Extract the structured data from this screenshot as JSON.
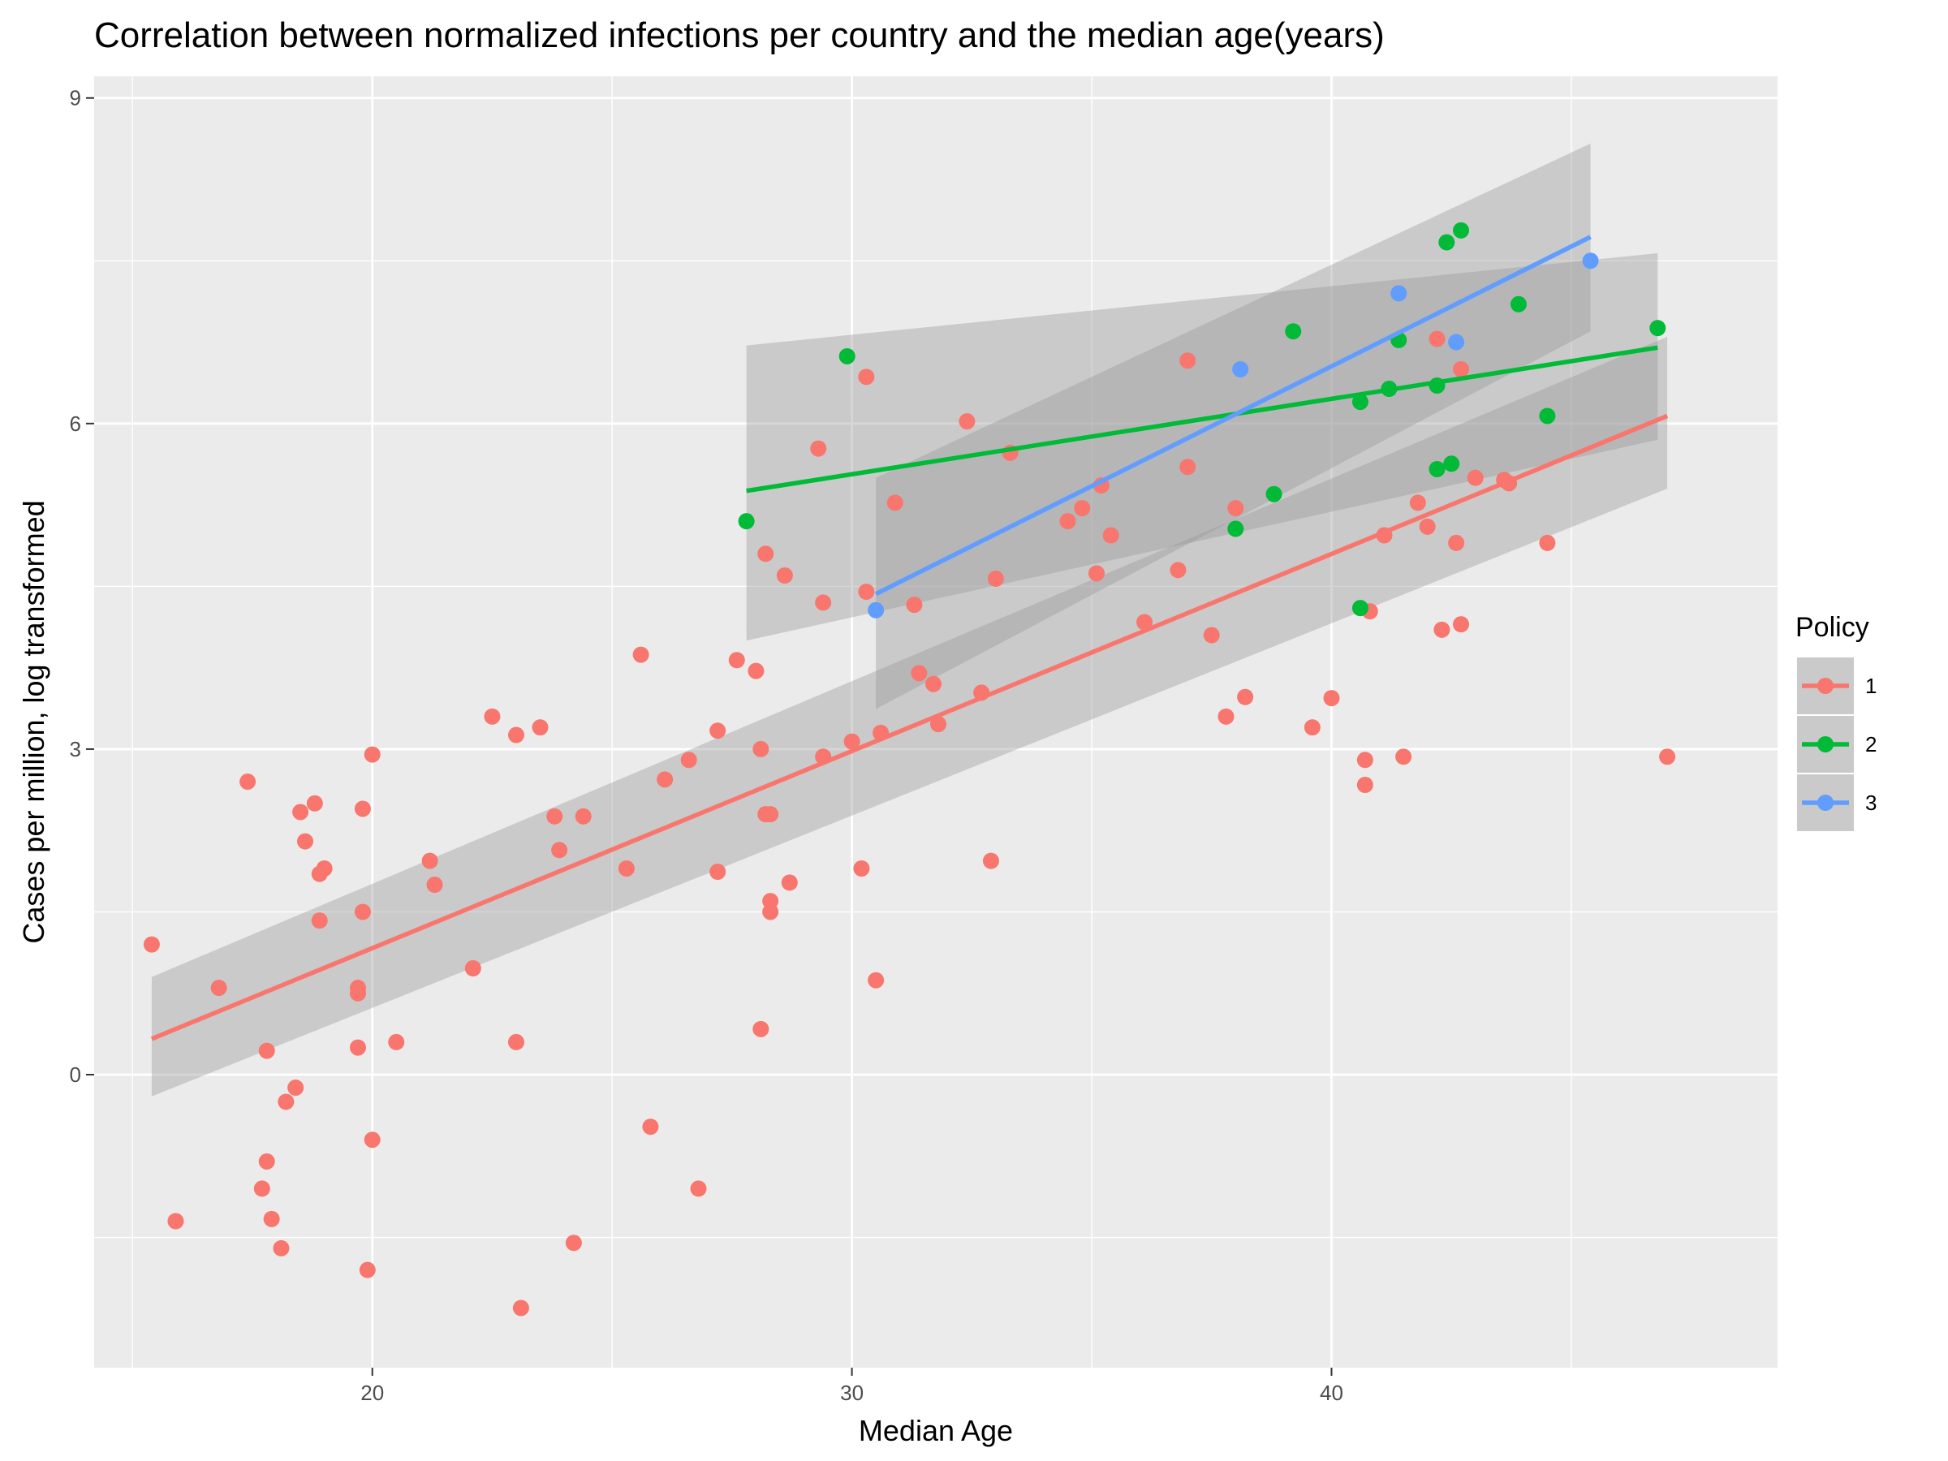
{
  "chart_data": {
    "type": "scatter",
    "title": "Correlation between normalized infections per country and the median age(years)",
    "xlabel": "Median Age",
    "ylabel": "Cases per million, log transformed",
    "xlim": [
      14.2,
      49.3
    ],
    "ylim": [
      -2.7,
      9.2
    ],
    "x_ticks": [
      20,
      30,
      40
    ],
    "y_ticks": [
      0,
      3,
      6,
      9
    ],
    "x_minor_ticks": [
      15,
      25,
      35,
      45
    ],
    "y_minor_ticks": [
      -1.5,
      1.5,
      4.5,
      7.5
    ],
    "grid": true,
    "legend": {
      "title": "Policy",
      "position": "right"
    },
    "series": [
      {
        "name": "1",
        "color": "#F8766D",
        "fit": {
          "x": [
            15.4,
            47.0
          ],
          "y": [
            0.33,
            6.07
          ],
          "ci_low": [
            -0.2,
            5.4
          ],
          "ci_high": [
            0.9,
            6.8
          ]
        },
        "points": [
          [
            15.4,
            1.2
          ],
          [
            15.9,
            -1.35
          ],
          [
            16.8,
            0.8
          ],
          [
            17.4,
            2.7
          ],
          [
            17.7,
            -1.05
          ],
          [
            17.8,
            -0.8
          ],
          [
            17.8,
            0.22
          ],
          [
            17.9,
            -1.33
          ],
          [
            18.1,
            -1.6
          ],
          [
            18.2,
            -0.25
          ],
          [
            18.4,
            -0.12
          ],
          [
            18.5,
            2.42
          ],
          [
            18.6,
            2.15
          ],
          [
            18.8,
            2.5
          ],
          [
            18.9,
            1.85
          ],
          [
            18.9,
            1.42
          ],
          [
            19.0,
            1.9
          ],
          [
            19.7,
            0.8
          ],
          [
            19.7,
            0.75
          ],
          [
            19.7,
            0.25
          ],
          [
            19.8,
            2.45
          ],
          [
            19.8,
            1.5
          ],
          [
            19.9,
            -1.8
          ],
          [
            20.0,
            2.95
          ],
          [
            20.0,
            -0.6
          ],
          [
            20.5,
            0.3
          ],
          [
            21.2,
            1.97
          ],
          [
            21.3,
            1.75
          ],
          [
            22.1,
            0.98
          ],
          [
            22.5,
            3.3
          ],
          [
            23.0,
            3.13
          ],
          [
            23.0,
            0.3
          ],
          [
            23.1,
            -2.15
          ],
          [
            23.5,
            3.2
          ],
          [
            23.8,
            2.38
          ],
          [
            23.9,
            2.07
          ],
          [
            24.2,
            -1.55
          ],
          [
            24.4,
            2.38
          ],
          [
            25.3,
            1.9
          ],
          [
            25.6,
            3.87
          ],
          [
            25.8,
            -0.48
          ],
          [
            26.1,
            2.72
          ],
          [
            26.6,
            2.9
          ],
          [
            26.8,
            -1.05
          ],
          [
            27.2,
            3.17
          ],
          [
            27.2,
            1.87
          ],
          [
            27.6,
            3.82
          ],
          [
            28.0,
            3.72
          ],
          [
            28.1,
            3.0
          ],
          [
            28.2,
            2.4
          ],
          [
            28.2,
            4.8
          ],
          [
            28.3,
            2.4
          ],
          [
            28.3,
            1.6
          ],
          [
            28.3,
            1.5
          ],
          [
            28.1,
            0.42
          ],
          [
            28.6,
            4.6
          ],
          [
            28.7,
            1.77
          ],
          [
            29.3,
            5.77
          ],
          [
            29.4,
            4.35
          ],
          [
            29.4,
            2.93
          ],
          [
            30.0,
            3.07
          ],
          [
            30.2,
            1.9
          ],
          [
            30.3,
            6.43
          ],
          [
            30.3,
            4.45
          ],
          [
            30.5,
            0.87
          ],
          [
            30.6,
            3.15
          ],
          [
            30.9,
            5.27
          ],
          [
            31.3,
            4.33
          ],
          [
            31.4,
            3.7
          ],
          [
            31.7,
            3.6
          ],
          [
            31.8,
            3.23
          ],
          [
            32.4,
            6.02
          ],
          [
            32.7,
            3.52
          ],
          [
            32.9,
            1.97
          ],
          [
            33.0,
            4.57
          ],
          [
            33.3,
            5.73
          ],
          [
            34.5,
            5.1
          ],
          [
            34.8,
            5.22
          ],
          [
            35.2,
            5.43
          ],
          [
            35.4,
            4.97
          ],
          [
            35.1,
            4.62
          ],
          [
            36.1,
            4.17
          ],
          [
            36.8,
            4.65
          ],
          [
            37.0,
            6.58
          ],
          [
            37.0,
            5.6
          ],
          [
            37.5,
            4.05
          ],
          [
            37.8,
            3.3
          ],
          [
            38.0,
            5.22
          ],
          [
            38.2,
            3.48
          ],
          [
            39.6,
            3.2
          ],
          [
            40.0,
            3.47
          ],
          [
            40.7,
            2.9
          ],
          [
            40.7,
            2.67
          ],
          [
            40.8,
            4.27
          ],
          [
            41.1,
            4.97
          ],
          [
            41.5,
            2.93
          ],
          [
            41.8,
            5.27
          ],
          [
            42.0,
            5.05
          ],
          [
            42.2,
            6.78
          ],
          [
            42.3,
            4.1
          ],
          [
            42.6,
            4.9
          ],
          [
            42.7,
            6.5
          ],
          [
            42.7,
            4.15
          ],
          [
            43.0,
            5.5
          ],
          [
            43.6,
            5.48
          ],
          [
            43.7,
            5.45
          ],
          [
            44.5,
            4.9
          ],
          [
            47.0,
            2.93
          ]
        ]
      },
      {
        "name": "2",
        "color": "#00BA38",
        "fit": {
          "x": [
            27.8,
            46.8
          ],
          "y": [
            5.38,
            6.7
          ],
          "ci_low": [
            4.0,
            5.85
          ],
          "ci_high": [
            6.72,
            7.57
          ]
        },
        "points": [
          [
            27.8,
            5.1
          ],
          [
            29.9,
            6.62
          ],
          [
            38.0,
            5.03
          ],
          [
            38.8,
            5.35
          ],
          [
            39.2,
            6.85
          ],
          [
            40.6,
            6.2
          ],
          [
            40.6,
            4.3
          ],
          [
            41.2,
            6.32
          ],
          [
            41.4,
            6.77
          ],
          [
            42.2,
            6.35
          ],
          [
            42.2,
            5.58
          ],
          [
            42.4,
            7.67
          ],
          [
            42.5,
            5.63
          ],
          [
            42.7,
            7.78
          ],
          [
            43.9,
            7.1
          ],
          [
            44.5,
            6.07
          ],
          [
            46.8,
            6.88
          ]
        ]
      },
      {
        "name": "3",
        "color": "#619CFF",
        "fit": {
          "x": [
            30.5,
            45.4
          ],
          "y": [
            4.43,
            7.72
          ],
          "ci_low": [
            3.37,
            6.85
          ],
          "ci_high": [
            5.5,
            8.58
          ]
        },
        "points": [
          [
            30.5,
            4.28
          ],
          [
            38.1,
            6.5
          ],
          [
            41.4,
            7.2
          ],
          [
            42.6,
            6.75
          ],
          [
            45.4,
            7.5
          ]
        ]
      }
    ]
  }
}
